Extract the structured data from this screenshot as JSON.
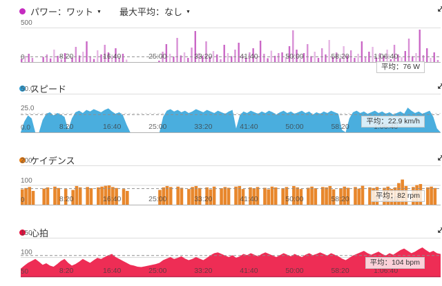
{
  "ui": {
    "caret": "▼"
  },
  "sections": [
    {
      "id": "power",
      "title": "パワー：ワット",
      "metric_label": "最大平均：なし",
      "dot_color": "#c52cc0"
    },
    {
      "id": "speed",
      "title": "スピード",
      "dot_color": "#2f9fd6"
    },
    {
      "id": "cadence",
      "title": "ケイデンス",
      "dot_color": "#e67d15"
    },
    {
      "id": "heart",
      "title": "心拍",
      "dot_color": "#e60f3e"
    }
  ],
  "x_axis": {
    "total_s": 4600,
    "step_s": 40,
    "ticks": [
      {
        "s": 500,
        "label": "8:20"
      },
      {
        "s": 1000,
        "label": "16:40"
      },
      {
        "s": 1500,
        "label": "25:00"
      },
      {
        "s": 2000,
        "label": "33:20"
      },
      {
        "s": 2500,
        "label": "41:40"
      },
      {
        "s": 3000,
        "label": "50:00"
      },
      {
        "s": 3500,
        "label": "58:20"
      },
      {
        "s": 4000,
        "label": "1:06:40"
      }
    ]
  },
  "chart_data": [
    {
      "id": "power",
      "type": "bar",
      "title": "パワー：ワット",
      "ylabel": "W",
      "color": "#c75fc3",
      "ylim": [
        0,
        500
      ],
      "yticks": [
        {
          "v": 500,
          "label": "500"
        },
        {
          "v": 0,
          "label": "0"
        }
      ],
      "gridlines": [],
      "average": 76,
      "average_label": "平均：76 W",
      "values": [
        45,
        88,
        120,
        60,
        0,
        0,
        75,
        110,
        52,
        180,
        90,
        40,
        130,
        0,
        65,
        220,
        95,
        150,
        300,
        85,
        45,
        170,
        110,
        250,
        140,
        90,
        200,
        60,
        120,
        35,
        0,
        0,
        0,
        0,
        0,
        0,
        0,
        0,
        20,
        150,
        260,
        120,
        80,
        350,
        95,
        140,
        60,
        210,
        450,
        130,
        90,
        300,
        70,
        160,
        110,
        40,
        250,
        130,
        85,
        180,
        280,
        95,
        60,
        140,
        200,
        75,
        310,
        120,
        55,
        165,
        90,
        130,
        140,
        70,
        230,
        460,
        180,
        45,
        130,
        260,
        85,
        150,
        60,
        200,
        110,
        320,
        75,
        140,
        50,
        230,
        95,
        170,
        60,
        120,
        300,
        80,
        150,
        220,
        65,
        130,
        90,
        180,
        40,
        250,
        110,
        70,
        160,
        340,
        85,
        130,
        470,
        100,
        200,
        60,
        140,
        30
      ]
    },
    {
      "id": "speed",
      "type": "area",
      "title": "スピード",
      "ylabel": "km/h",
      "color": "#4aaede",
      "ylim": [
        0,
        50
      ],
      "yticks": [
        {
          "v": 50,
          "label": "50.0"
        },
        {
          "v": 25,
          "label": "25.0"
        },
        {
          "v": 0,
          "label": "0.0"
        }
      ],
      "gridlines": [
        {
          "v": 25,
          "dashed": true
        }
      ],
      "average": 22.9,
      "average_label": "平均：22.9 km/h",
      "values": [
        0,
        14,
        22,
        18,
        0,
        0,
        16,
        24,
        26,
        22,
        25,
        23,
        20,
        3,
        18,
        26,
        28,
        25,
        29,
        27,
        30,
        28,
        26,
        29,
        31,
        27,
        24,
        26,
        22,
        10,
        0,
        0,
        0,
        0,
        0,
        0,
        0,
        0,
        0,
        20,
        28,
        30,
        27,
        29,
        26,
        28,
        25,
        27,
        30,
        28,
        26,
        29,
        27,
        25,
        28,
        26,
        24,
        27,
        29,
        5,
        22,
        27,
        25,
        28,
        26,
        24,
        27,
        25,
        28,
        26,
        23,
        26,
        28,
        25,
        27,
        24,
        26,
        28,
        25,
        27,
        23,
        26,
        24,
        27,
        25,
        28,
        26,
        24,
        3,
        0,
        18,
        26,
        28,
        25,
        27,
        24,
        26,
        28,
        25,
        27,
        24,
        26,
        23,
        25,
        27,
        24,
        32,
        28,
        25,
        27,
        24,
        26,
        28,
        20,
        5,
        0
      ]
    },
    {
      "id": "cadence",
      "type": "bar",
      "title": "ケイデンス",
      "ylabel": "rpm",
      "color": "#e8872c",
      "ylim": [
        0,
        200
      ],
      "yticks": [
        {
          "v": 200,
          "label": "200"
        },
        {
          "v": 100,
          "label": "100"
        },
        {
          "v": 0,
          "label": "0"
        }
      ],
      "gridlines": [
        {
          "v": 100,
          "dashed": false
        }
      ],
      "average": 82,
      "average_label": "平均：82 rpm",
      "values": [
        78,
        85,
        90,
        70,
        0,
        0,
        82,
        88,
        0,
        92,
        85,
        0,
        80,
        0,
        75,
        95,
        88,
        0,
        90,
        84,
        0,
        88,
        92,
        96,
        98,
        90,
        85,
        0,
        80,
        70,
        0,
        0,
        0,
        0,
        0,
        0,
        0,
        0,
        75,
        88,
        95,
        90,
        0,
        92,
        86,
        0,
        80,
        90,
        95,
        85,
        0,
        88,
        78,
        92,
        0,
        84,
        90,
        86,
        0,
        92,
        95,
        80,
        0,
        88,
        84,
        90,
        0,
        86,
        78,
        92,
        88,
        0,
        84,
        90,
        0,
        95,
        88,
        80,
        0,
        86,
        92,
        84,
        0,
        90,
        88,
        95,
        78,
        0,
        84,
        92,
        86,
        0,
        90,
        82,
        96,
        0,
        88,
        85,
        90,
        0,
        86,
        92,
        80,
        88,
        110,
        128,
        95,
        0,
        90,
        100,
        105,
        0,
        88,
        92,
        85,
        0
      ]
    },
    {
      "id": "heart",
      "type": "area",
      "title": "心拍",
      "ylabel": "bpm",
      "color": "#ee2d55",
      "axis_color": "#c2244c",
      "ylim": [
        50,
        150
      ],
      "yticks": [
        {
          "v": 150,
          "label": "150"
        },
        {
          "v": 100,
          "label": "100"
        },
        {
          "v": 50,
          "label": "50"
        }
      ],
      "gridlines": [
        {
          "v": 100,
          "dashed": false
        }
      ],
      "average": 104,
      "average_label": "平均：104 bpm",
      "values": [
        70,
        78,
        85,
        90,
        95,
        88,
        80,
        84,
        78,
        75,
        82,
        90,
        95,
        85,
        78,
        82,
        88,
        95,
        90,
        85,
        92,
        98,
        95,
        100,
        105,
        108,
        100,
        95,
        90,
        85,
        80,
        78,
        75,
        74,
        76,
        78,
        80,
        82,
        85,
        92,
        96,
        100,
        95,
        98,
        102,
        96,
        92,
        95,
        100,
        96,
        92,
        98,
        105,
        110,
        112,
        108,
        104,
        100,
        105,
        98,
        102,
        108,
        105,
        110,
        106,
        102,
        108,
        112,
        108,
        104,
        100,
        105,
        110,
        106,
        102,
        108,
        104,
        100,
        106,
        110,
        105,
        108,
        112,
        108,
        104,
        110,
        106,
        102,
        96,
        92,
        98,
        104,
        108,
        112,
        116,
        110,
        106,
        110,
        114,
        108,
        104,
        110,
        106,
        112,
        118,
        122,
        116,
        110,
        114,
        120,
        125,
        118,
        112,
        116,
        110,
        108
      ]
    }
  ]
}
